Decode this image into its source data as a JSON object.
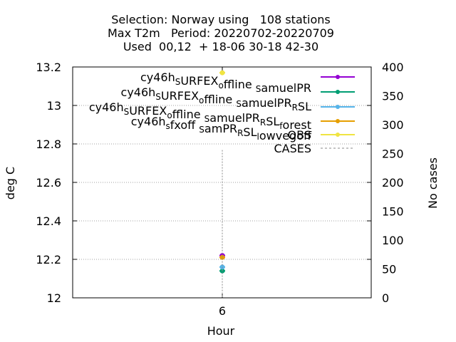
{
  "chart_data": {
    "type": "scatter",
    "title_lines": [
      "Selection: Norway using   108 stations",
      "Max T2m   Period: 20220702-20220709",
      "Used  00,12  + 18-06 30-18 42-30"
    ],
    "xlabel": "Hour",
    "ylabel": "deg C",
    "y2label": "No cases",
    "x_ticks": [
      "6"
    ],
    "y_ticks": [
      "12",
      "12.2",
      "12.4",
      "12.6",
      "12.8",
      "13",
      "13.2"
    ],
    "y2_ticks": [
      "0",
      "50",
      "100",
      "150",
      "200",
      "250",
      "300",
      "350",
      "400"
    ],
    "ylim": [
      12,
      13.2
    ],
    "y2lim": [
      0,
      400
    ],
    "grid": true,
    "legend_position": "top-right",
    "x": [
      6
    ],
    "series": [
      {
        "name": "cy46h_SURFEX_offline_samuelPR",
        "color": "#9400d3",
        "values": [
          12.22
        ]
      },
      {
        "name": "cy46h_SURFEX_offline_samuelPR_RSL",
        "color": "#009e73",
        "values": [
          12.14
        ]
      },
      {
        "name": "cy46h_SURFEX_offline_samuelPR_RSL_forest",
        "color": "#56b4e9",
        "values": [
          12.16
        ]
      },
      {
        "name": "cy46h_sfxoff_samPR_RSL_lowvegoff",
        "color": "#e69f00",
        "values": [
          12.21
        ]
      },
      {
        "name": "OBS",
        "color": "#f0e442",
        "values": [
          13.17
        ]
      },
      {
        "name": "CASES",
        "color": "#888888",
        "dashed": true,
        "axis": "y2",
        "values": [
          256
        ]
      }
    ],
    "legend_labels": [
      {
        "parts": [
          [
            "cy46h",
            "n"
          ],
          [
            "S",
            "s"
          ],
          [
            "URFEX",
            "n"
          ],
          [
            "o",
            "s"
          ],
          [
            "ffline ",
            "n"
          ],
          [
            "S",
            "s"
          ],
          [
            "amuelPR",
            "n"
          ]
        ]
      },
      {
        "parts": [
          [
            "cy46h",
            "n"
          ],
          [
            "S",
            "s"
          ],
          [
            "URFEX",
            "n"
          ],
          [
            "o",
            "s"
          ],
          [
            "ffline ",
            "n"
          ],
          [
            "S",
            "s"
          ],
          [
            "amuelPR",
            "n"
          ],
          [
            "R",
            "s"
          ],
          [
            "SL",
            "n"
          ]
        ]
      },
      {
        "parts": [
          [
            "cy46h",
            "n"
          ],
          [
            "S",
            "s"
          ],
          [
            "URFEX",
            "n"
          ],
          [
            "o",
            "s"
          ],
          [
            "ffline ",
            "n"
          ],
          [
            "S",
            "s"
          ],
          [
            "amuelPR",
            "n"
          ],
          [
            "R",
            "s"
          ],
          [
            "SL",
            "n"
          ],
          [
            "f",
            "s"
          ],
          [
            "orest",
            "n"
          ]
        ]
      },
      {
        "parts": [
          [
            "cy46h",
            "n"
          ],
          [
            "s",
            "s"
          ],
          [
            "fxoff ",
            "n"
          ],
          [
            "S",
            "s"
          ],
          [
            "amPR",
            "n"
          ],
          [
            "R",
            "s"
          ],
          [
            "SL",
            "n"
          ],
          [
            "l",
            "s"
          ],
          [
            "owvegoff",
            "n"
          ]
        ]
      },
      {
        "parts": [
          [
            "OBS",
            "n"
          ]
        ]
      },
      {
        "parts": [
          [
            "CASES",
            "n"
          ]
        ]
      }
    ]
  }
}
